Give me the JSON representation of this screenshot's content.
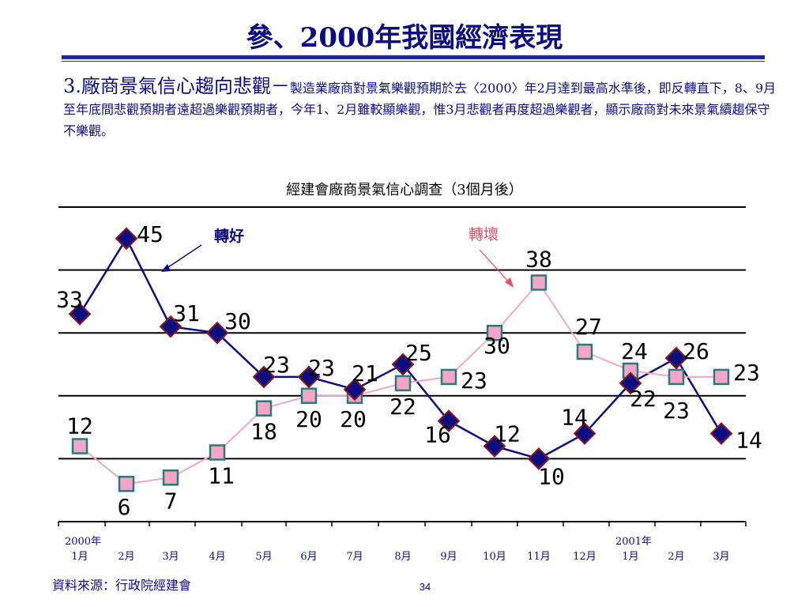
{
  "slide": {
    "title": "參、2000年我國經濟表現",
    "heading_lead": "3.廠商景氣信心趨向悲觀－",
    "heading_body": "製造業廠商對景氣樂觀預期於去〈2000〉年2月達到最高水準後，即反轉直下，8、9月至年底間悲觀預期者遠超過樂觀預期者，今年1、2月雖較顯樂觀，惟3月悲觀者再度超過樂觀者，顯示廠商對未來景氣續趨保守不樂觀。",
    "source": "資料來源：行政院經建會",
    "page_number": "34"
  },
  "chart_data": {
    "type": "line",
    "title": "經建會廠商景氣信心調查（3個月後）",
    "categories": [
      "1月",
      "2月",
      "3月",
      "4月",
      "5月",
      "6月",
      "7月",
      "8月",
      "9月",
      "10月",
      "11月",
      "12月",
      "1月",
      "2月",
      "3月"
    ],
    "year_labels": [
      {
        "index": 0,
        "text": "2000年"
      },
      {
        "index": 12,
        "text": "2001年"
      }
    ],
    "series": [
      {
        "name": "轉好",
        "color": "#0d0d82",
        "marker_color": "#0d0d82",
        "marker": "diamond",
        "values": [
          33,
          45,
          31,
          30,
          23,
          23,
          21,
          25,
          16,
          12,
          10,
          14,
          22,
          26,
          14
        ]
      },
      {
        "name": "轉壞",
        "color": "#f4a6c8",
        "marker_color": "#f4a6c8",
        "marker": "square",
        "values": [
          12,
          6,
          7,
          11,
          18,
          20,
          20,
          22,
          23,
          30,
          38,
          27,
          24,
          23,
          23
        ]
      }
    ],
    "ylim": [
      0,
      50
    ],
    "grid": true,
    "legend": "inline-annotations"
  }
}
